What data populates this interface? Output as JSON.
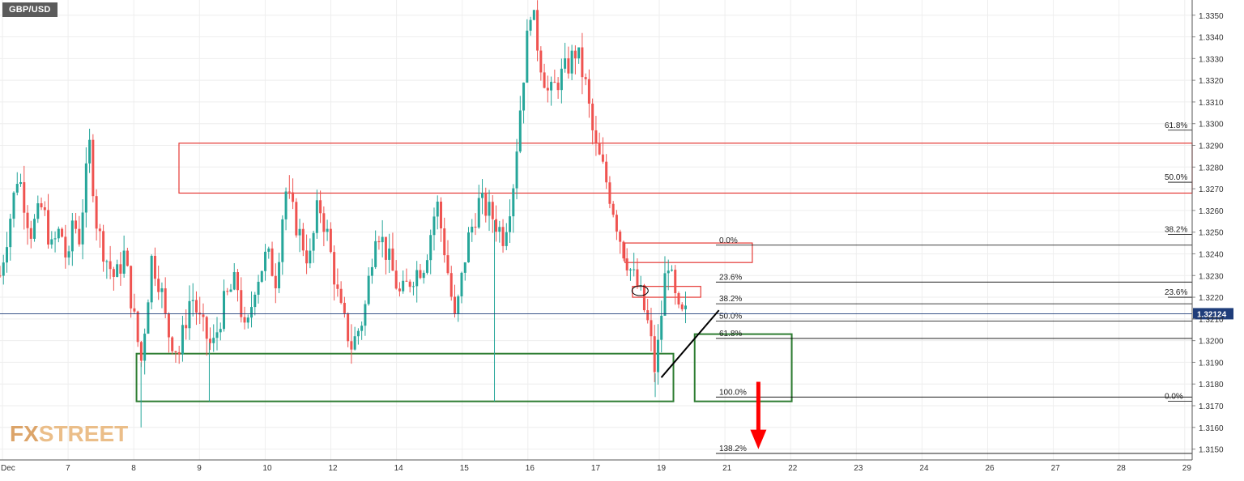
{
  "symbol": "GBP/USD",
  "watermark": {
    "fx": "FX",
    "street": "STREET"
  },
  "colors": {
    "up_candle": "#26a69a",
    "down_candle": "#ef5350",
    "grid": "#eeeeee",
    "current_price_line": "#1f3d7a",
    "current_price_badge": "#1f3d7a",
    "zone_red": "#e53935",
    "zone_green": "#2e7d32",
    "arrow": "#ff0000",
    "trendline": "#000000",
    "fib_line": "#000000"
  },
  "chart_data": {
    "type": "candlestick",
    "title": "GBP/USD",
    "xlabel": "",
    "ylabel": "",
    "ylim": [
      1.3145,
      1.3357
    ],
    "grid": true,
    "price_axis_ticks": [
      "1.3150",
      "1.3160",
      "1.3170",
      "1.3180",
      "1.3190",
      "1.3200",
      "1.3210",
      "1.3220",
      "1.3230",
      "1.3240",
      "1.3250",
      "1.3260",
      "1.3270",
      "1.3280",
      "1.3290",
      "1.3300",
      "1.3310",
      "1.3320",
      "1.3330",
      "1.3340",
      "1.3350"
    ],
    "time_axis_labels": [
      "Dec",
      "7",
      "8",
      "9",
      "10",
      "12",
      "14",
      "15",
      "16",
      "17",
      "19",
      "21",
      "22",
      "23",
      "24",
      "26",
      "27",
      "28",
      "29"
    ],
    "current_price": "1.32124",
    "anchors": [
      {
        "t": 0,
        "v": 1.323
      },
      {
        "t": 1.2,
        "v": 1.3278
      },
      {
        "t": 2.0,
        "v": 1.325
      },
      {
        "t": 2.8,
        "v": 1.3262
      },
      {
        "t": 3.4,
        "v": 1.3242
      },
      {
        "t": 4.0,
        "v": 1.3252
      },
      {
        "t": 4.5,
        "v": 1.3232
      },
      {
        "t": 4.8,
        "v": 1.3258
      },
      {
        "t": 5.2,
        "v": 1.3246
      },
      {
        "t": 5.9,
        "v": 1.329
      },
      {
        "t": 6.4,
        "v": 1.3252
      },
      {
        "t": 7.0,
        "v": 1.3238
      },
      {
        "t": 7.6,
        "v": 1.3228
      },
      {
        "t": 8.2,
        "v": 1.324
      },
      {
        "t": 8.8,
        "v": 1.3212
      },
      {
        "t": 9.3,
        "v": 1.319
      },
      {
        "t": 10.0,
        "v": 1.3238
      },
      {
        "t": 10.6,
        "v": 1.3225
      },
      {
        "t": 11.0,
        "v": 1.3205
      },
      {
        "t": 11.8,
        "v": 1.3194
      },
      {
        "t": 12.6,
        "v": 1.3222
      },
      {
        "t": 13.2,
        "v": 1.3208
      },
      {
        "t": 14.0,
        "v": 1.3196
      },
      {
        "t": 14.8,
        "v": 1.3218
      },
      {
        "t": 15.6,
        "v": 1.3228
      },
      {
        "t": 16.2,
        "v": 1.32
      },
      {
        "t": 16.8,
        "v": 1.3226
      },
      {
        "t": 17.6,
        "v": 1.324
      },
      {
        "t": 18.2,
        "v": 1.3228
      },
      {
        "t": 18.8,
        "v": 1.327
      },
      {
        "t": 19.6,
        "v": 1.3252
      },
      {
        "t": 20.4,
        "v": 1.3236
      },
      {
        "t": 21.0,
        "v": 1.3264
      },
      {
        "t": 21.6,
        "v": 1.3248
      },
      {
        "t": 22.4,
        "v": 1.3215
      },
      {
        "t": 23.2,
        "v": 1.3197
      },
      {
        "t": 24.0,
        "v": 1.3212
      },
      {
        "t": 24.8,
        "v": 1.3254
      },
      {
        "t": 25.6,
        "v": 1.3238
      },
      {
        "t": 26.4,
        "v": 1.322
      },
      {
        "t": 27.2,
        "v": 1.323
      },
      {
        "t": 28.0,
        "v": 1.3236
      },
      {
        "t": 28.8,
        "v": 1.3264
      },
      {
        "t": 29.4,
        "v": 1.3238
      },
      {
        "t": 30.0,
        "v": 1.3208
      },
      {
        "t": 30.8,
        "v": 1.3245
      },
      {
        "t": 31.6,
        "v": 1.3264
      },
      {
        "t": 32.4,
        "v": 1.3258
      },
      {
        "t": 33.2,
        "v": 1.3248
      },
      {
        "t": 33.8,
        "v": 1.327
      },
      {
        "t": 34.4,
        "v": 1.3315
      },
      {
        "t": 35.0,
        "v": 1.3355
      },
      {
        "t": 35.6,
        "v": 1.333
      },
      {
        "t": 36.2,
        "v": 1.3312
      },
      {
        "t": 36.8,
        "v": 1.332
      },
      {
        "t": 37.4,
        "v": 1.3326
      },
      {
        "t": 38.0,
        "v": 1.3334
      },
      {
        "t": 38.6,
        "v": 1.3318
      },
      {
        "t": 39.2,
        "v": 1.329
      },
      {
        "t": 39.8,
        "v": 1.3278
      },
      {
        "t": 40.4,
        "v": 1.3262
      },
      {
        "t": 41.0,
        "v": 1.3244
      },
      {
        "t": 41.6,
        "v": 1.3232
      },
      {
        "t": 42.2,
        "v": 1.3222
      },
      {
        "t": 42.8,
        "v": 1.3205
      },
      {
        "t": 43.2,
        "v": 1.3185
      },
      {
        "t": 43.6,
        "v": 1.3212
      },
      {
        "t": 44.0,
        "v": 1.324
      },
      {
        "t": 44.4,
        "v": 1.3222
      },
      {
        "t": 44.8,
        "v": 1.321
      },
      {
        "t": 45.2,
        "v": 1.3212
      }
    ],
    "wick_spikes": [
      {
        "t": 9.3,
        "low": 1.316
      },
      {
        "t": 32.6,
        "low": 1.3172
      },
      {
        "t": 13.8,
        "low": 1.3172
      },
      {
        "t": 43.2,
        "low": 1.3174
      }
    ],
    "zones": [
      {
        "color": "red",
        "t1": 11.8,
        "t2": 78.6,
        "top": 1.3291,
        "bottom": 1.3268
      },
      {
        "color": "green",
        "t1": 9.0,
        "t2": 44.4,
        "top": 1.3194,
        "bottom": 1.3172
      },
      {
        "color": "red",
        "t1": 41.2,
        "t2": 49.6,
        "top": 1.3245,
        "bottom": 1.3236
      },
      {
        "color": "red",
        "t1": 41.7,
        "t2": 46.2,
        "top": 1.3225,
        "bottom": 1.322
      },
      {
        "color": "green",
        "t1": 45.8,
        "t2": 52.2,
        "top": 1.3203,
        "bottom": 1.3172
      }
    ],
    "trendline": {
      "t1": 43.6,
      "v1": 1.3183,
      "t2": 47.4,
      "v2": 1.3214
    },
    "arrow": {
      "t": 50.0,
      "from": 1.3181,
      "to": 1.315
    },
    "ellipse_marker": {
      "t": 42.2,
      "v": 1.3223
    },
    "fib_short": {
      "t_start": 47.2,
      "t_end": 78.6,
      "levels": [
        {
          "label": "0.0%",
          "value": 1.3244
        },
        {
          "label": "23.6%",
          "value": 1.3227
        },
        {
          "label": "38.2%",
          "value": 1.3217
        },
        {
          "label": "50.0%",
          "value": 1.3209
        },
        {
          "label": "61.8%",
          "value": 1.3201
        },
        {
          "label": "100.0%",
          "value": 1.3174
        },
        {
          "label": "138.2%",
          "value": 1.3148
        }
      ]
    },
    "fib_long": {
      "t_start": 77.0,
      "t_end": 78.6,
      "levels": [
        {
          "label": "61.8%",
          "value": 1.3297
        },
        {
          "label": "50.0%",
          "value": 1.3273
        },
        {
          "label": "38.2%",
          "value": 1.3249
        },
        {
          "label": "23.6%",
          "value": 1.322
        },
        {
          "label": "0.0%",
          "value": 1.3172
        }
      ]
    }
  }
}
